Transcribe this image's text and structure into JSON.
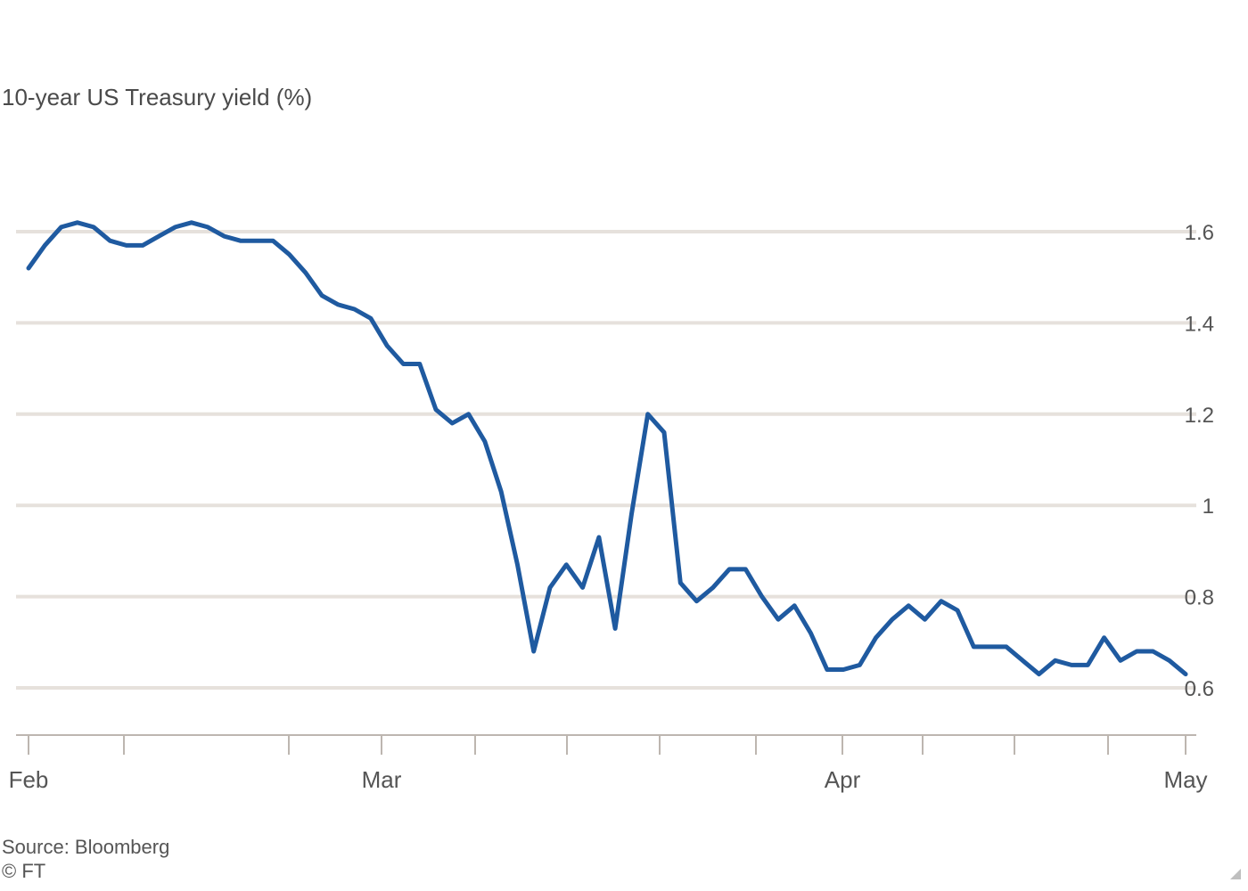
{
  "chart_data": {
    "type": "line",
    "title": "10-year US Treasury yield (%)",
    "xlabel": "",
    "ylabel": "",
    "x_tick_labels": [
      "Feb",
      "Mar",
      "Apr",
      "May"
    ],
    "yticks": [
      0.6,
      0.8,
      1,
      1.2,
      1.4,
      1.6
    ],
    "ytick_labels": [
      "0.6",
      "0.8",
      "1",
      "1.2",
      "1.4",
      "1.6"
    ],
    "ylim": [
      0.495,
      1.7
    ],
    "grid": true,
    "legend": "none",
    "series": [
      {
        "color": "#1f5aa0",
        "values": [
          1.52,
          1.57,
          1.61,
          1.62,
          1.61,
          1.58,
          1.57,
          1.57,
          1.59,
          1.61,
          1.62,
          1.61,
          1.59,
          1.58,
          1.58,
          1.58,
          1.55,
          1.51,
          1.46,
          1.44,
          1.43,
          1.41,
          1.35,
          1.31,
          1.31,
          1.21,
          1.18,
          1.2,
          1.14,
          1.03,
          0.87,
          0.68,
          0.82,
          0.87,
          0.82,
          0.93,
          0.73,
          0.98,
          1.2,
          1.16,
          0.83,
          0.79,
          0.82,
          0.86,
          0.86,
          0.8,
          0.75,
          0.78,
          0.72,
          0.64,
          0.64,
          0.65,
          0.71,
          0.75,
          0.78,
          0.75,
          0.79,
          0.77,
          0.69,
          0.69,
          0.69,
          0.66,
          0.63,
          0.66,
          0.65,
          0.65,
          0.71,
          0.66,
          0.68,
          0.68,
          0.66,
          0.63
        ]
      }
    ]
  },
  "source": {
    "line1": "Source: Bloomberg",
    "line2": "© FT"
  }
}
